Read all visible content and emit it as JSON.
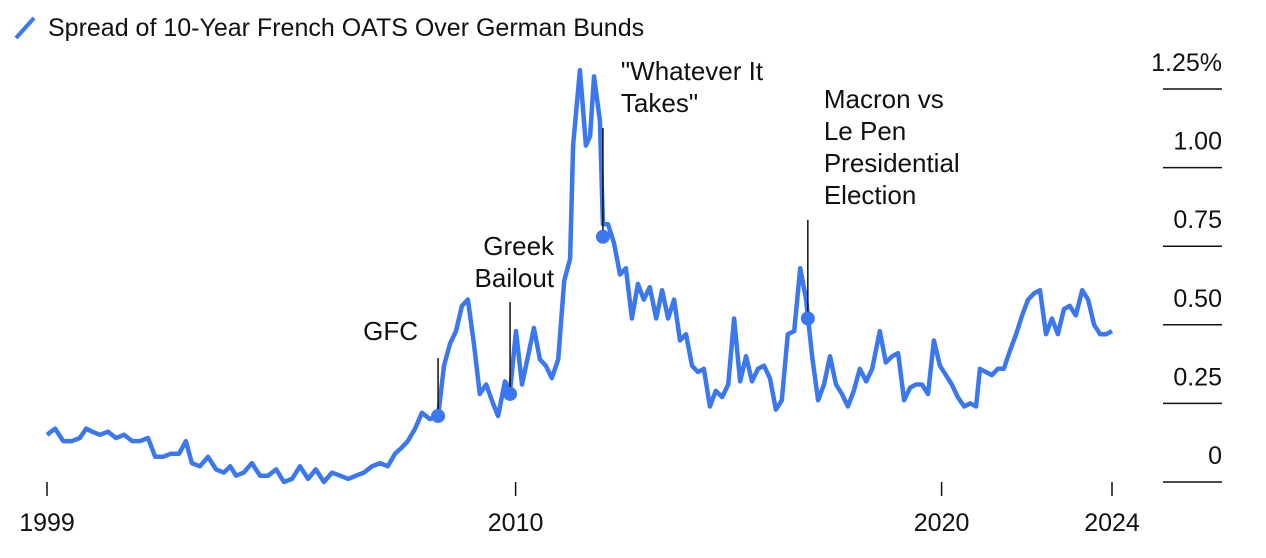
{
  "chart_data": {
    "type": "line",
    "x": [
      1999.0,
      1999.19,
      1999.38,
      1999.59,
      1999.77,
      1999.92,
      2000.06,
      2000.24,
      2000.43,
      2000.62,
      2000.81,
      2001.0,
      2001.18,
      2001.37,
      2001.54,
      2001.72,
      2001.91,
      2002.1,
      2002.26,
      2002.4,
      2002.59,
      2002.78,
      2002.97,
      2003.15,
      2003.3,
      2003.44,
      2003.62,
      2003.81,
      2004.0,
      2004.19,
      2004.38,
      2004.56,
      2004.75,
      2004.94,
      2005.13,
      2005.31,
      2005.5,
      2005.69,
      2005.88,
      2006.07,
      2006.25,
      2006.44,
      2006.63,
      2006.82,
      2007.0,
      2007.17,
      2007.33,
      2007.47,
      2007.64,
      2007.8,
      2007.99,
      2008.18,
      2008.32,
      2008.46,
      2008.6,
      2008.74,
      2008.88,
      2009.02,
      2009.16,
      2009.31,
      2009.47,
      2009.59,
      2009.75,
      2009.87,
      2010.01,
      2010.15,
      2010.29,
      2010.43,
      2010.57,
      2010.71,
      2010.85,
      2011.0,
      2011.14,
      2011.28,
      2011.35,
      2011.51,
      2011.65,
      2011.75,
      2011.84,
      2011.98,
      2012.05,
      2012.17,
      2012.31,
      2012.45,
      2012.59,
      2012.73,
      2012.87,
      2013.01,
      2013.15,
      2013.3,
      2013.44,
      2013.58,
      2013.72,
      2013.86,
      2014.0,
      2014.14,
      2014.28,
      2014.42,
      2014.56,
      2014.7,
      2014.85,
      2014.99,
      2015.13,
      2015.27,
      2015.41,
      2015.55,
      2015.69,
      2015.83,
      2015.97,
      2016.11,
      2016.25,
      2016.39,
      2016.54,
      2016.68,
      2016.82,
      2016.96,
      2017.1,
      2017.24,
      2017.38,
      2017.52,
      2017.66,
      2017.8,
      2017.94,
      2018.08,
      2018.23,
      2018.37,
      2018.55,
      2018.69,
      2018.84,
      2018.98,
      2019.12,
      2019.26,
      2019.4,
      2019.54,
      2019.68,
      2019.82,
      2019.96,
      2020.1,
      2020.24,
      2020.38,
      2020.53,
      2020.67,
      2020.81,
      2020.9,
      2021.04,
      2021.18,
      2021.32,
      2021.46,
      2021.61,
      2021.75,
      2021.89,
      2022.03,
      2022.17,
      2022.31,
      2022.45,
      2022.59,
      2022.73,
      2022.87,
      2023.01,
      2023.15,
      2023.3,
      2023.44,
      2023.58,
      2023.72,
      2023.86,
      2024.0
    ],
    "series": [
      {
        "name": "Spread of 10-Year French OATS Over German Bunds",
        "color": "#3b78f0",
        "values": [
          0.15,
          0.17,
          0.13,
          0.13,
          0.14,
          0.17,
          0.16,
          0.15,
          0.16,
          0.14,
          0.15,
          0.13,
          0.13,
          0.14,
          0.08,
          0.08,
          0.09,
          0.09,
          0.13,
          0.06,
          0.05,
          0.08,
          0.04,
          0.03,
          0.05,
          0.02,
          0.03,
          0.06,
          0.02,
          0.02,
          0.04,
          0.0,
          0.01,
          0.05,
          0.01,
          0.04,
          0.0,
          0.03,
          0.02,
          0.01,
          0.02,
          0.03,
          0.05,
          0.06,
          0.05,
          0.09,
          0.11,
          0.13,
          0.17,
          0.22,
          0.2,
          0.21,
          0.37,
          0.44,
          0.48,
          0.56,
          0.58,
          0.44,
          0.28,
          0.31,
          0.25,
          0.21,
          0.32,
          0.29,
          0.48,
          0.31,
          0.4,
          0.49,
          0.39,
          0.37,
          0.33,
          0.39,
          0.64,
          0.71,
          1.07,
          1.31,
          1.07,
          1.1,
          1.29,
          1.15,
          0.82,
          0.82,
          0.76,
          0.66,
          0.68,
          0.52,
          0.63,
          0.58,
          0.62,
          0.52,
          0.61,
          0.52,
          0.58,
          0.45,
          0.47,
          0.37,
          0.35,
          0.36,
          0.24,
          0.29,
          0.27,
          0.31,
          0.52,
          0.32,
          0.4,
          0.32,
          0.36,
          0.37,
          0.33,
          0.23,
          0.26,
          0.47,
          0.48,
          0.68,
          0.58,
          0.4,
          0.26,
          0.31,
          0.4,
          0.31,
          0.28,
          0.24,
          0.29,
          0.36,
          0.32,
          0.36,
          0.48,
          0.38,
          0.4,
          0.41,
          0.26,
          0.3,
          0.31,
          0.31,
          0.28,
          0.45,
          0.37,
          0.34,
          0.31,
          0.27,
          0.24,
          0.25,
          0.24,
          0.36,
          0.35,
          0.34,
          0.36,
          0.36,
          0.42,
          0.47,
          0.53,
          0.58,
          0.6,
          0.61,
          0.47,
          0.52,
          0.47,
          0.55,
          0.56,
          0.53,
          0.61,
          0.58,
          0.5,
          0.47,
          0.47,
          0.48
        ]
      }
    ],
    "xlim": [
      1999,
      2024
    ],
    "xticks": [
      1999,
      2010,
      2020,
      2024
    ],
    "ylim": [
      0,
      1.35
    ],
    "yticks": [
      0,
      0.25,
      {
        "value": 0.5,
        "label": "0.50"
      },
      0.75,
      {
        "value": 1,
        "label": "1.00"
      },
      {
        "value": 1.25,
        "label": "1.25%"
      }
    ],
    "annotations": [
      {
        "text": [
          "GFC"
        ],
        "x": 2008.18,
        "y": 0.21
      },
      {
        "text": [
          "Greek",
          "Bailout"
        ],
        "x": 2009.87,
        "y": 0.28
      },
      {
        "text": [
          "\"Whatever It",
          "Takes\""
        ],
        "x": 2012.05,
        "y": 0.78
      },
      {
        "text": [
          "Macron vs",
          "Le Pen",
          "Presidential",
          "Election"
        ],
        "x": 2016.86,
        "y": 0.52
      }
    ]
  }
}
